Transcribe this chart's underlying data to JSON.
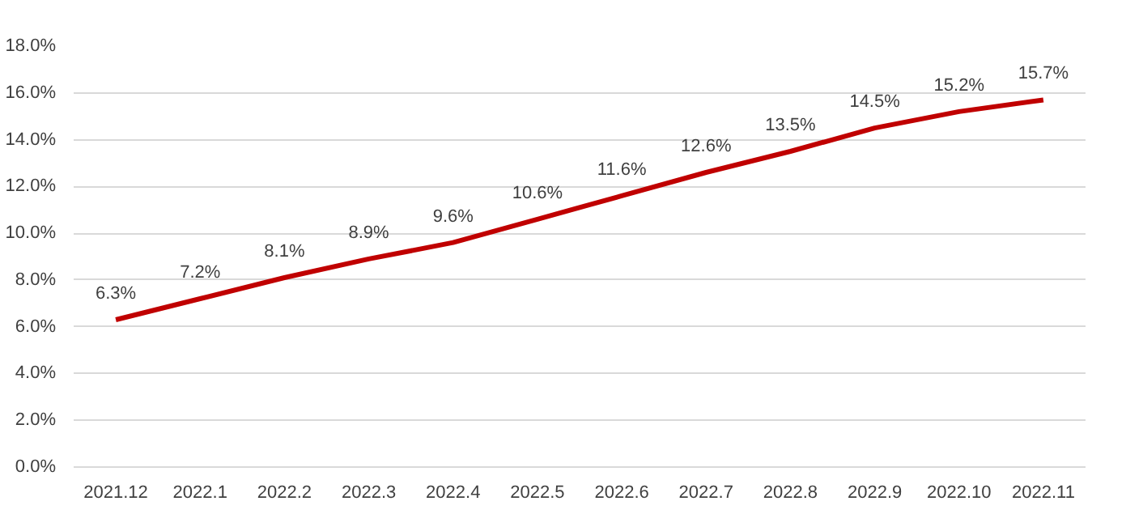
{
  "chart_data": {
    "type": "line",
    "categories": [
      "2021.12",
      "2022.1",
      "2022.2",
      "2022.3",
      "2022.4",
      "2022.5",
      "2022.6",
      "2022.7",
      "2022.8",
      "2022.9",
      "2022.10",
      "2022.11"
    ],
    "series": [
      {
        "color": "#c00000",
        "values": [
          6.3,
          7.2,
          8.1,
          8.9,
          9.6,
          10.6,
          11.6,
          12.6,
          13.5,
          14.5,
          15.2,
          15.7
        ],
        "value_labels": [
          "6.3%",
          "7.2%",
          "8.1%",
          "8.9%",
          "9.6%",
          "10.6%",
          "11.6%",
          "12.6%",
          "13.5%",
          "14.5%",
          "15.2%",
          "15.7%"
        ]
      }
    ],
    "ylim": [
      0,
      18
    ],
    "yticks": [
      {
        "value": 0,
        "label": "0.0%"
      },
      {
        "value": 2,
        "label": "2.0%"
      },
      {
        "value": 4,
        "label": "4.0%"
      },
      {
        "value": 6,
        "label": "6.0%"
      },
      {
        "value": 8,
        "label": "8.0%"
      },
      {
        "value": 10,
        "label": "10.0%"
      },
      {
        "value": 12,
        "label": "12.0%"
      },
      {
        "value": 14,
        "label": "14.0%"
      },
      {
        "value": 16,
        "label": "16.0%"
      },
      {
        "value": 18,
        "label": "18.0%"
      }
    ],
    "grid": "y",
    "line_style": "solid"
  }
}
